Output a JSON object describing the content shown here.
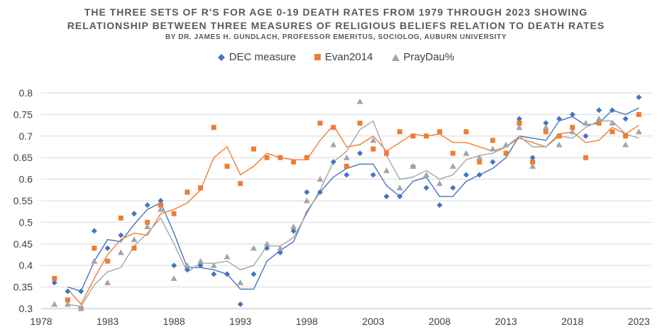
{
  "chart_data": {
    "type": "scatter",
    "title": "THE THREE SETS OF R'S FOR AGE 0-19 DEATH RATES FROM 1979 THROUGH 2023 SHOWING",
    "subtitle": "RELATIONSHIP BETWEEN THREE MEASURES OF RELIGIOUS BELIEFS RELATION TO DEATH RATES",
    "byline": "BY DR. JAMES H. GUNDLACH, PROFESSOR EMERITUS, SOCIOLOG, AUBURN UNIVERSITY",
    "xlabel": "",
    "ylabel": "",
    "xlim": [
      1978,
      2024
    ],
    "ylim": [
      0.3,
      0.8
    ],
    "x_ticks": [
      1978,
      1983,
      1988,
      1993,
      1998,
      2003,
      2008,
      2013,
      2018,
      2023
    ],
    "y_ticks": [
      "0.3",
      "0.35",
      "0.4",
      "0.45",
      "0.5",
      "0.55",
      "0.6",
      "0.65",
      "0.7",
      "0.75",
      "0.8"
    ],
    "y_tick_values": [
      0.3,
      0.35,
      0.4,
      0.45,
      0.5,
      0.55,
      0.6,
      0.65,
      0.7,
      0.75,
      0.8
    ],
    "trend": "two-period moving average",
    "grid": true,
    "legend_position": "top",
    "x": [
      1979,
      1980,
      1981,
      1982,
      1983,
      1984,
      1985,
      1986,
      1987,
      1988,
      1989,
      1990,
      1991,
      1992,
      1993,
      1994,
      1995,
      1996,
      1997,
      1998,
      1999,
      2000,
      2001,
      2002,
      2003,
      2004,
      2005,
      2006,
      2007,
      2008,
      2009,
      2010,
      2011,
      2012,
      2013,
      2014,
      2015,
      2016,
      2017,
      2018,
      2019,
      2020,
      2021,
      2022,
      2023
    ],
    "series": [
      {
        "name": "DEC measure",
        "color": "#4472C4",
        "marker": "diamond",
        "values": [
          0.36,
          0.34,
          0.34,
          0.48,
          0.44,
          0.47,
          0.52,
          0.54,
          0.55,
          0.4,
          0.39,
          0.4,
          0.38,
          0.38,
          0.31,
          0.38,
          0.44,
          0.43,
          0.48,
          0.57,
          0.57,
          0.64,
          0.61,
          0.66,
          0.61,
          0.56,
          0.56,
          0.63,
          0.58,
          0.54,
          0.58,
          0.61,
          0.61,
          0.64,
          0.66,
          0.74,
          0.65,
          0.73,
          0.74,
          0.75,
          0.7,
          0.76,
          0.76,
          0.74,
          0.79
        ]
      },
      {
        "name": "Evan2014",
        "color": "#ED7D31",
        "marker": "square",
        "values": [
          0.37,
          0.32,
          0.3,
          0.44,
          0.41,
          0.51,
          0.44,
          0.5,
          0.54,
          0.52,
          0.57,
          0.58,
          0.72,
          0.63,
          0.59,
          0.67,
          0.65,
          0.65,
          0.64,
          0.65,
          0.73,
          0.72,
          0.63,
          0.73,
          0.67,
          0.66,
          0.71,
          0.7,
          0.7,
          0.71,
          0.66,
          0.71,
          0.64,
          0.69,
          0.66,
          0.73,
          0.64,
          0.71,
          0.7,
          0.72,
          0.65,
          0.73,
          0.71,
          0.7,
          0.75
        ]
      },
      {
        "name": "PrayDau%",
        "color": "#A5A5A5",
        "marker": "triangle",
        "values": [
          0.31,
          0.31,
          0.3,
          0.41,
          0.36,
          0.43,
          0.46,
          0.49,
          0.53,
          0.37,
          0.4,
          0.41,
          0.4,
          0.42,
          0.36,
          0.44,
          0.45,
          0.44,
          0.49,
          0.55,
          0.6,
          0.68,
          0.65,
          0.78,
          0.69,
          0.62,
          0.58,
          0.63,
          0.61,
          0.59,
          0.63,
          0.66,
          0.65,
          0.67,
          0.68,
          0.72,
          0.63,
          0.72,
          0.68,
          0.71,
          0.73,
          0.74,
          0.73,
          0.68,
          0.71
        ]
      }
    ]
  }
}
